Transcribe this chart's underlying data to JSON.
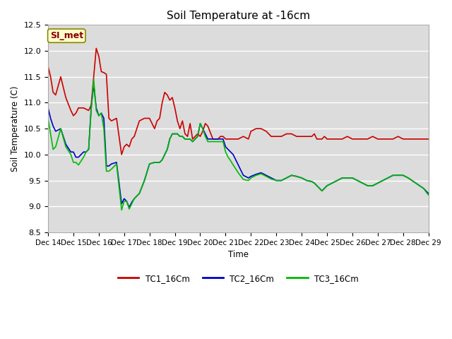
{
  "title": "Soil Temperature at -16cm",
  "xlabel": "Time",
  "ylabel": "Soil Temperature (C)",
  "ylim": [
    8.5,
    12.5
  ],
  "background_color": "#dcdcdc",
  "plot_bg_color": "#dcdcdc",
  "grid_color": "#ffffff",
  "annotation_text": "SI_met",
  "annotation_bg": "#ffffcc",
  "annotation_border": "#888800",
  "annotation_text_color": "#880000",
  "x_tick_labels": [
    "Dec 14",
    "Dec 15",
    "Dec 16",
    "Dec 17",
    "Dec 18",
    "Dec 19",
    "Dec 20",
    "Dec 21",
    "Dec 22",
    "Dec 23",
    "Dec 24",
    "Dec 25",
    "Dec 26",
    "Dec 27",
    "Dec 28",
    "Dec 29"
  ],
  "legend_labels": [
    "TC1_16Cm",
    "TC2_16Cm",
    "TC3_16Cm"
  ],
  "legend_colors": [
    "#cc0000",
    "#0000cc",
    "#00bb00"
  ],
  "line_width": 1.2,
  "TC1_x": [
    0.0,
    0.1,
    0.2,
    0.3,
    0.5,
    0.7,
    0.9,
    1.0,
    1.1,
    1.2,
    1.4,
    1.6,
    1.7,
    1.8,
    1.9,
    2.0,
    2.1,
    2.2,
    2.3,
    2.4,
    2.5,
    2.7,
    2.9,
    3.0,
    3.1,
    3.2,
    3.3,
    3.4,
    3.6,
    3.8,
    4.0,
    4.2,
    4.3,
    4.4,
    4.5,
    4.6,
    4.7,
    4.8,
    4.9,
    5.0,
    5.1,
    5.2,
    5.3,
    5.4,
    5.5,
    5.6,
    5.7,
    5.8,
    5.9,
    6.0,
    6.1,
    6.2,
    6.3,
    6.5,
    6.7,
    6.8,
    6.9,
    7.0,
    7.1,
    7.2,
    7.3,
    7.5,
    7.7,
    7.9,
    8.0,
    8.2,
    8.4,
    8.6,
    8.8,
    9.0,
    9.2,
    9.4,
    9.6,
    9.8,
    10.0,
    10.2,
    10.4,
    10.5,
    10.6,
    10.7,
    10.8,
    10.9,
    11.0,
    11.2,
    11.4,
    11.6,
    11.8,
    12.0,
    12.2,
    12.4,
    12.6,
    12.8,
    13.0,
    13.2,
    13.4,
    13.6,
    13.8,
    14.0,
    14.2,
    14.5,
    14.8,
    15.0
  ],
  "TC1_y": [
    11.7,
    11.5,
    11.2,
    11.15,
    11.5,
    11.1,
    10.85,
    10.75,
    10.8,
    10.9,
    10.9,
    10.85,
    10.95,
    11.5,
    12.05,
    11.9,
    11.6,
    11.58,
    11.55,
    10.7,
    10.65,
    10.7,
    10.0,
    10.15,
    10.2,
    10.15,
    10.3,
    10.35,
    10.65,
    10.7,
    10.7,
    10.5,
    10.65,
    10.7,
    11.0,
    11.2,
    11.15,
    11.05,
    11.1,
    10.9,
    10.65,
    10.5,
    10.65,
    10.4,
    10.35,
    10.6,
    10.3,
    10.35,
    10.4,
    10.35,
    10.45,
    10.6,
    10.55,
    10.3,
    10.3,
    10.35,
    10.35,
    10.3,
    10.3,
    10.3,
    10.3,
    10.3,
    10.35,
    10.3,
    10.45,
    10.5,
    10.5,
    10.45,
    10.35,
    10.35,
    10.35,
    10.4,
    10.4,
    10.35,
    10.35,
    10.35,
    10.35,
    10.4,
    10.3,
    10.3,
    10.3,
    10.35,
    10.3,
    10.3,
    10.3,
    10.3,
    10.35,
    10.3,
    10.3,
    10.3,
    10.3,
    10.35,
    10.3,
    10.3,
    10.3,
    10.3,
    10.35,
    10.3,
    10.3,
    10.3,
    10.3,
    10.3
  ],
  "TC2_x": [
    0.0,
    0.1,
    0.2,
    0.3,
    0.5,
    0.7,
    0.9,
    1.0,
    1.1,
    1.2,
    1.4,
    1.5,
    1.6,
    1.7,
    1.8,
    1.9,
    2.0,
    2.1,
    2.2,
    2.3,
    2.4,
    2.5,
    2.7,
    2.9,
    3.0,
    3.1,
    3.2,
    3.3,
    3.4,
    3.6,
    3.8,
    4.0,
    4.2,
    4.3,
    4.4,
    4.5,
    4.6,
    4.7,
    4.8,
    4.9,
    5.0,
    5.1,
    5.2,
    5.3,
    5.4,
    5.5,
    5.6,
    5.7,
    5.8,
    5.9,
    6.0,
    6.1,
    6.2,
    6.3,
    6.5,
    6.7,
    6.8,
    6.9,
    7.0,
    7.1,
    7.2,
    7.3,
    7.5,
    7.7,
    7.9,
    8.0,
    8.2,
    8.4,
    8.6,
    8.8,
    9.0,
    9.2,
    9.4,
    9.6,
    9.8,
    10.0,
    10.2,
    10.4,
    10.5,
    10.6,
    10.7,
    10.8,
    10.9,
    11.0,
    11.2,
    11.4,
    11.6,
    11.8,
    12.0,
    12.2,
    12.4,
    12.6,
    12.8,
    13.0,
    13.2,
    13.4,
    13.6,
    13.8,
    14.0,
    14.2,
    14.5,
    14.8,
    15.0
  ],
  "TC2_y": [
    10.9,
    10.7,
    10.55,
    10.45,
    10.5,
    10.2,
    10.05,
    10.05,
    9.95,
    9.95,
    10.05,
    10.05,
    10.1,
    10.9,
    11.35,
    10.9,
    10.75,
    10.8,
    10.7,
    9.78,
    9.78,
    9.82,
    9.85,
    9.05,
    9.15,
    9.1,
    8.98,
    9.08,
    9.15,
    9.25,
    9.5,
    9.82,
    9.85,
    9.85,
    9.85,
    9.9,
    10.0,
    10.1,
    10.3,
    10.4,
    10.4,
    10.4,
    10.35,
    10.35,
    10.3,
    10.3,
    10.3,
    10.25,
    10.3,
    10.35,
    10.6,
    10.5,
    10.4,
    10.3,
    10.3,
    10.3,
    10.3,
    10.3,
    10.15,
    10.1,
    10.05,
    10.0,
    9.8,
    9.6,
    9.55,
    9.58,
    9.62,
    9.65,
    9.6,
    9.55,
    9.5,
    9.5,
    9.55,
    9.6,
    9.58,
    9.55,
    9.5,
    9.48,
    9.45,
    9.4,
    9.35,
    9.3,
    9.35,
    9.4,
    9.45,
    9.5,
    9.55,
    9.55,
    9.55,
    9.5,
    9.45,
    9.4,
    9.4,
    9.45,
    9.5,
    9.55,
    9.6,
    9.6,
    9.6,
    9.55,
    9.45,
    9.35,
    9.25
  ],
  "TC3_x": [
    0.0,
    0.1,
    0.2,
    0.3,
    0.5,
    0.7,
    0.9,
    1.0,
    1.1,
    1.2,
    1.4,
    1.5,
    1.6,
    1.7,
    1.8,
    1.9,
    2.0,
    2.1,
    2.2,
    2.3,
    2.4,
    2.5,
    2.7,
    2.9,
    3.0,
    3.1,
    3.2,
    3.3,
    3.4,
    3.6,
    3.8,
    4.0,
    4.2,
    4.3,
    4.4,
    4.5,
    4.6,
    4.7,
    4.8,
    4.9,
    5.0,
    5.1,
    5.2,
    5.3,
    5.4,
    5.5,
    5.6,
    5.7,
    5.8,
    5.9,
    6.0,
    6.1,
    6.2,
    6.3,
    6.5,
    6.7,
    6.8,
    6.9,
    7.0,
    7.1,
    7.2,
    7.3,
    7.5,
    7.7,
    7.9,
    8.0,
    8.2,
    8.4,
    8.6,
    8.8,
    9.0,
    9.2,
    9.4,
    9.6,
    9.8,
    10.0,
    10.2,
    10.4,
    10.5,
    10.6,
    10.7,
    10.8,
    10.9,
    11.0,
    11.2,
    11.4,
    11.6,
    11.8,
    12.0,
    12.2,
    12.4,
    12.6,
    12.8,
    13.0,
    13.2,
    13.4,
    13.6,
    13.8,
    14.0,
    14.2,
    14.5,
    14.8,
    15.0
  ],
  "TC3_y": [
    10.7,
    10.4,
    10.1,
    10.15,
    10.5,
    10.15,
    10.0,
    9.85,
    9.85,
    9.8,
    9.95,
    10.05,
    10.1,
    10.85,
    11.45,
    10.85,
    10.75,
    10.8,
    10.5,
    9.68,
    9.68,
    9.72,
    9.82,
    8.93,
    9.1,
    9.1,
    8.95,
    9.05,
    9.15,
    9.25,
    9.5,
    9.82,
    9.85,
    9.85,
    9.85,
    9.9,
    10.0,
    10.1,
    10.3,
    10.4,
    10.4,
    10.4,
    10.35,
    10.35,
    10.3,
    10.3,
    10.3,
    10.25,
    10.3,
    10.35,
    10.6,
    10.5,
    10.35,
    10.25,
    10.25,
    10.25,
    10.25,
    10.25,
    10.05,
    9.95,
    9.88,
    9.8,
    9.65,
    9.52,
    9.5,
    9.55,
    9.6,
    9.63,
    9.58,
    9.53,
    9.5,
    9.5,
    9.55,
    9.6,
    9.58,
    9.55,
    9.5,
    9.48,
    9.45,
    9.4,
    9.35,
    9.3,
    9.35,
    9.4,
    9.45,
    9.5,
    9.55,
    9.55,
    9.55,
    9.5,
    9.45,
    9.4,
    9.4,
    9.45,
    9.5,
    9.55,
    9.6,
    9.6,
    9.6,
    9.55,
    9.45,
    9.35,
    9.22
  ]
}
